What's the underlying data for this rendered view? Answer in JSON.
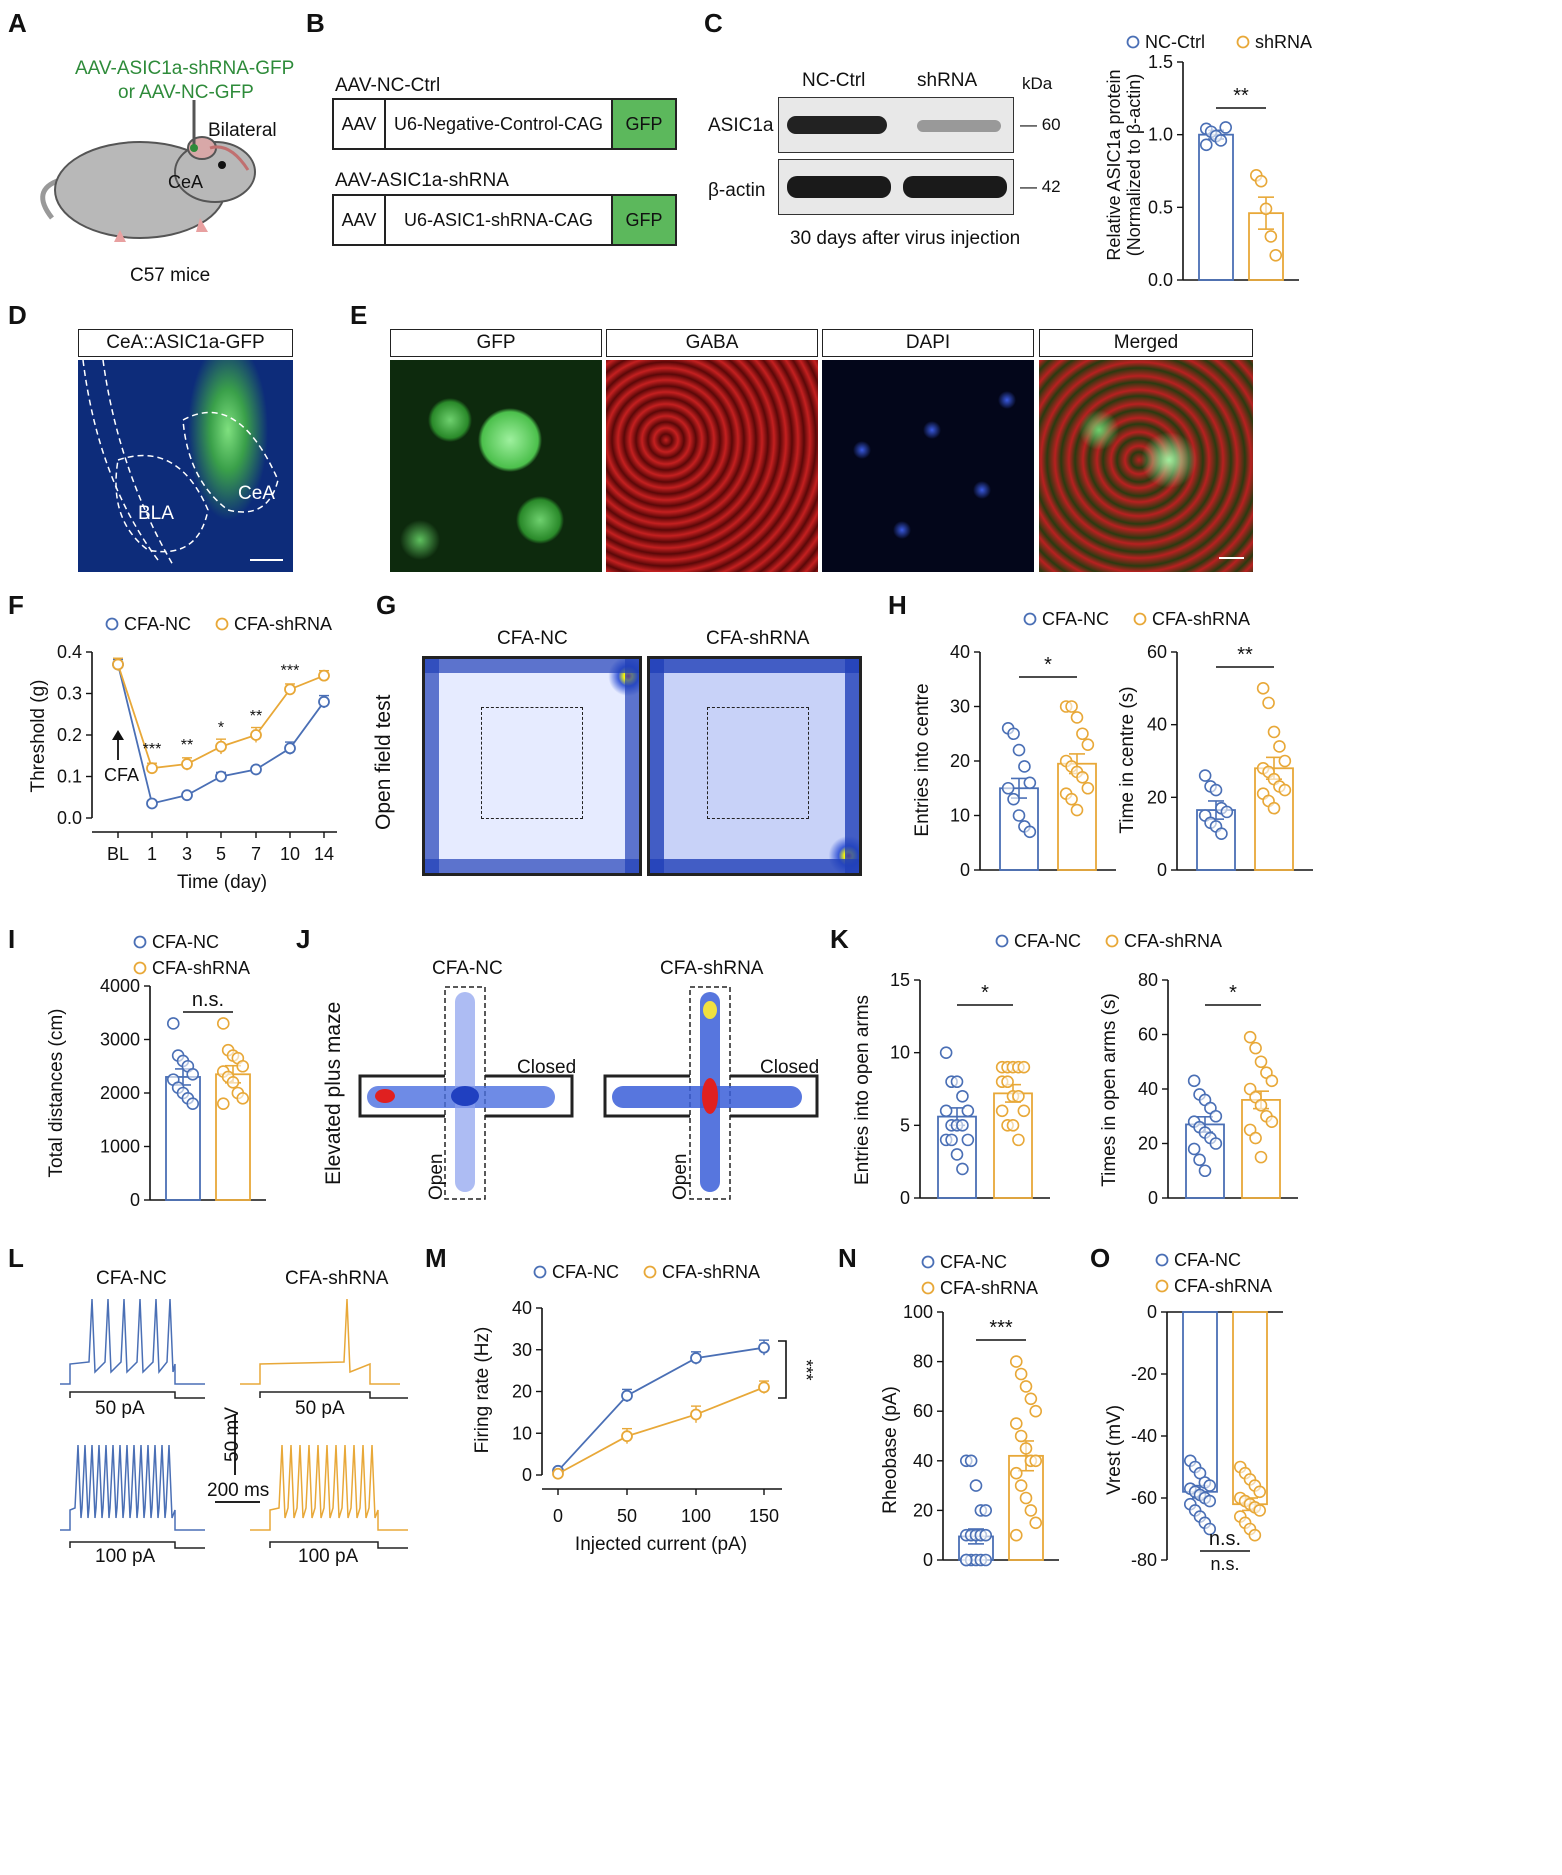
{
  "colors": {
    "nc": "#4a6fb5",
    "sh": "#e8a838",
    "green": "#2e8b3a",
    "gfp_green": "#5cb85c"
  },
  "panel_letters": [
    "A",
    "B",
    "C",
    "D",
    "E",
    "F",
    "G",
    "H",
    "I",
    "J",
    "K",
    "L",
    "M",
    "N",
    "O"
  ],
  "A": {
    "virus_line1": "AAV-ASIC1a-shRNA-GFP",
    "virus_line2": "or AAV-NC-GFP",
    "bilateral": "Bilateral",
    "cea": "CeA",
    "mice": "C57 mice"
  },
  "B": {
    "ctrl_title": "AAV-NC-Ctrl",
    "shrna_title": "AAV-ASIC1a-shRNA",
    "ctrl_cells": [
      "AAV",
      "U6-Negative-Control-CAG",
      "GFP"
    ],
    "shrna_cells": [
      "AAV",
      "U6-ASIC1-shRNA-CAG",
      "GFP"
    ]
  },
  "C": {
    "col1": "NC-Ctrl",
    "col2": "shRNA",
    "kda": "kDa",
    "band1": "ASIC1a",
    "band2": "β-actin",
    "mw1": "— 60",
    "mw2": "— 42",
    "caption": "30 days after virus injection"
  },
  "D": {
    "header": "CeA::ASIC1a-GFP",
    "bla": "BLA",
    "cea": "CeA"
  },
  "E": {
    "headers": [
      "GFP",
      "GABA",
      "DAPI",
      "Merged"
    ]
  },
  "G": {
    "title1": "CFA-NC",
    "title2": "CFA-shRNA",
    "side": "Open field test"
  },
  "J": {
    "title1": "CFA-NC",
    "title2": "CFA-shRNA",
    "side": "Elevated plus maze",
    "closed": "Closed",
    "open": "Open"
  },
  "L": {
    "title1": "CFA-NC",
    "title2": "CFA-shRNA",
    "step1": "50 pA",
    "step2": "100 pA",
    "scale_v": "50 mV",
    "scale_t": "200 ms"
  },
  "chart_data": [
    {
      "id": "C-bar",
      "type": "bar",
      "legend": [
        "NC-Ctrl",
        "shRNA"
      ],
      "ylabel": "Relative ASIC1a protein (Normalized to β-actin)",
      "ylim": [
        0,
        1.5
      ],
      "yticks": [
        "0.0",
        "0.5",
        "1.0",
        "1.5"
      ],
      "means": [
        1.0,
        0.46
      ],
      "errors": [
        0.03,
        0.11
      ],
      "points": [
        [
          1.04,
          1.02,
          0.99,
          0.96,
          1.05,
          0.93
        ],
        [
          0.72,
          0.68,
          0.49,
          0.3,
          0.17
        ]
      ],
      "sig": "**"
    },
    {
      "id": "F-line",
      "type": "line",
      "legend": [
        "CFA-NC",
        "CFA-shRNA"
      ],
      "xlabel": "Time (day)",
      "ylabel": "Threshold (g)",
      "categories": [
        "BL",
        "1",
        "3",
        "5",
        "7",
        "10",
        "14"
      ],
      "ylim": [
        0,
        0.4
      ],
      "yticks": [
        "0.0",
        "0.1",
        "0.2",
        "0.3",
        "0.4"
      ],
      "series": [
        {
          "name": "CFA-NC",
          "values": [
            0.37,
            0.035,
            0.055,
            0.1,
            0.117,
            0.168,
            0.28
          ],
          "errors": [
            0.012,
            0.004,
            0.005,
            0.01,
            0.007,
            0.015,
            0.015
          ]
        },
        {
          "name": "CFA-shRNA",
          "values": [
            0.37,
            0.12,
            0.13,
            0.172,
            0.2,
            0.31,
            0.343
          ],
          "errors": [
            0.015,
            0.012,
            0.015,
            0.018,
            0.018,
            0.013,
            0.012
          ]
        }
      ],
      "sig": [
        "",
        "***",
        "**",
        "*",
        "**",
        "***",
        ""
      ],
      "annotation": "CFA"
    },
    {
      "id": "H1",
      "type": "bar",
      "legend": [
        "CFA-NC",
        "CFA-shRNA"
      ],
      "ylabel": "Entries into centre",
      "ylim": [
        0,
        40
      ],
      "yticks": [
        "0",
        "10",
        "20",
        "30",
        "40"
      ],
      "means": [
        15,
        19.5
      ],
      "errors": [
        1.8,
        1.8
      ],
      "points": [
        [
          26,
          25,
          22,
          19,
          16,
          15,
          13,
          10,
          8,
          7
        ],
        [
          30,
          30,
          28,
          25,
          23,
          20,
          19,
          18,
          17,
          15,
          14,
          13,
          11
        ]
      ],
      "sig": "*"
    },
    {
      "id": "H2",
      "type": "bar",
      "ylabel": "Time in centre (s)",
      "ylim": [
        0,
        60
      ],
      "yticks": [
        "0",
        "20",
        "40",
        "60"
      ],
      "means": [
        16.5,
        28
      ],
      "errors": [
        2.5,
        3
      ],
      "points": [
        [
          26,
          23,
          22,
          17,
          16,
          15,
          13,
          12,
          10
        ],
        [
          50,
          46,
          38,
          34,
          30,
          28,
          27,
          25,
          23,
          22,
          21,
          19,
          17
        ]
      ],
      "sig": "**"
    },
    {
      "id": "I-bar",
      "type": "bar",
      "legend": [
        "CFA-NC",
        "CFA-shRNA"
      ],
      "ylabel": "Total distances (cm)",
      "ylim": [
        0,
        4000
      ],
      "yticks": [
        "0",
        "1000",
        "2000",
        "3000",
        "4000"
      ],
      "means": [
        2300,
        2350
      ],
      "errors": [
        150,
        160
      ],
      "points": [
        [
          3300,
          2700,
          2600,
          2500,
          2350,
          2250,
          2100,
          2000,
          1900,
          1800
        ],
        [
          3300,
          2800,
          2700,
          2650,
          2500,
          2400,
          2300,
          2200,
          2000,
          1900,
          1800
        ]
      ],
      "sig": "n.s."
    },
    {
      "id": "K1",
      "type": "bar",
      "legend": [
        "CFA-NC",
        "CFA-shRNA"
      ],
      "ylabel": "Entries into open arms",
      "ylim": [
        0,
        15
      ],
      "yticks": [
        "0",
        "5",
        "10",
        "15"
      ],
      "means": [
        5.6,
        7.2
      ],
      "errors": [
        0.6,
        0.6
      ],
      "points": [
        [
          10,
          8,
          8,
          7,
          6,
          6,
          5,
          5,
          5,
          4,
          4,
          4,
          3,
          2
        ],
        [
          9,
          9,
          9,
          9,
          9,
          8,
          8,
          7,
          7,
          6,
          6,
          5,
          5,
          4
        ]
      ],
      "sig": "*"
    },
    {
      "id": "K2",
      "type": "bar",
      "ylabel": "Times in open arms (s)",
      "ylim": [
        0,
        80
      ],
      "yticks": [
        "0",
        "20",
        "40",
        "60",
        "80"
      ],
      "means": [
        27,
        36
      ],
      "errors": [
        2.8,
        3.2
      ],
      "points": [
        [
          43,
          38,
          36,
          33,
          30,
          28,
          26,
          24,
          22,
          20,
          18,
          14,
          10
        ],
        [
          59,
          55,
          50,
          46,
          43,
          40,
          37,
          34,
          30,
          28,
          25,
          22,
          15
        ]
      ],
      "sig": "*"
    },
    {
      "id": "M-line",
      "type": "line",
      "legend": [
        "CFA-NC",
        "CFA-shRNA"
      ],
      "xlabel": "Injected current (pA)",
      "ylabel": "Firing rate (Hz)",
      "x": [
        0,
        50,
        100,
        150
      ],
      "xticks": [
        "0",
        "50",
        "100",
        "150"
      ],
      "ylim": [
        0,
        40
      ],
      "yticks": [
        "0",
        "10",
        "20",
        "30",
        "40"
      ],
      "series": [
        {
          "name": "CFA-NC",
          "values": [
            1.0,
            19.0,
            28.0,
            30.5
          ],
          "errors": [
            0.4,
            1.5,
            1.5,
            1.8
          ]
        },
        {
          "name": "CFA-shRNA",
          "values": [
            0.3,
            9.3,
            14.5,
            21.0
          ],
          "errors": [
            0.3,
            1.8,
            2.0,
            1.5
          ]
        }
      ],
      "sig": "***"
    },
    {
      "id": "N-bar",
      "type": "bar",
      "legend": [
        "CFA-NC",
        "CFA-shRNA"
      ],
      "ylabel": "Rheobase (pA)",
      "ylim": [
        0,
        100
      ],
      "yticks": [
        "0",
        "20",
        "40",
        "60",
        "80",
        "100"
      ],
      "means": [
        9.5,
        42
      ],
      "errors": [
        3,
        6
      ],
      "points": [
        [
          40,
          40,
          30,
          20,
          20,
          10,
          10,
          10,
          10,
          10,
          0,
          0,
          0,
          0,
          0,
          0
        ],
        [
          80,
          75,
          70,
          65,
          60,
          55,
          50,
          45,
          40,
          40,
          35,
          30,
          25,
          20,
          15,
          10
        ]
      ],
      "sig": "***"
    },
    {
      "id": "O-bar",
      "type": "bar",
      "legend": [
        "CFA-NC",
        "CFA-shRNA"
      ],
      "ylabel": "Vrest (mV)",
      "ylim": [
        -80,
        0
      ],
      "yticks": [
        "0",
        "-20",
        "-40",
        "-60",
        "-80"
      ],
      "means": [
        -58,
        -62
      ],
      "errors": [
        2,
        2
      ],
      "points": [
        [
          -48,
          -50,
          -52,
          -55,
          -56,
          -57,
          -58,
          -59,
          -60,
          -61,
          -62,
          -64,
          -66,
          -68,
          -70
        ],
        [
          -50,
          -52,
          -54,
          -56,
          -58,
          -60,
          -61,
          -62,
          -63,
          -64,
          -66,
          -68,
          -70,
          -72
        ]
      ],
      "sig": "n.s."
    }
  ]
}
